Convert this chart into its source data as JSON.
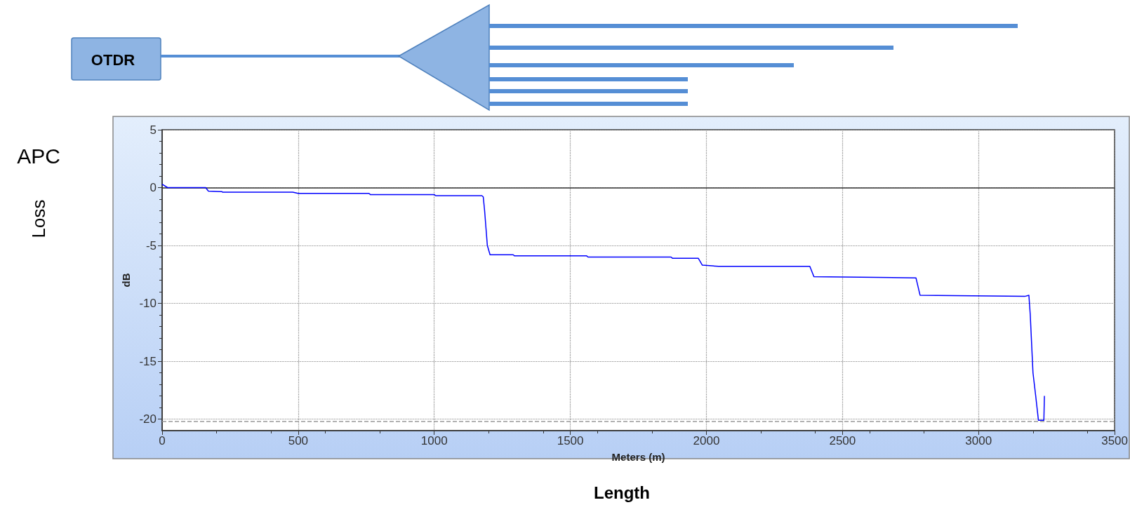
{
  "chart_data": {
    "type": "line",
    "xlabel": "Meters (m)",
    "ylabel": "dB",
    "annotations": [
      "APC",
      "Loss",
      "Length",
      "OTDR"
    ],
    "xlim": [
      0,
      3500
    ],
    "xticks": [
      0,
      500,
      1000,
      1500,
      2000,
      2500,
      3000,
      3500
    ],
    "ylim": [
      -21,
      5
    ],
    "yticks": [
      -20,
      -15,
      -10,
      -5,
      0,
      5
    ],
    "grid": true,
    "marker": "none",
    "line_style": "solid",
    "ref_lines": [
      {
        "axis": "y",
        "value": 0,
        "label": null,
        "color": "#333333",
        "line_style": "solid"
      },
      {
        "axis": "y",
        "value": -20.2,
        "label": null,
        "color": "#999999",
        "line_style": "dashed"
      }
    ],
    "series": [
      {
        "color": "#0000ff",
        "x": [
          0,
          20,
          160,
          170,
          220,
          222,
          480,
          500,
          760,
          765,
          1000,
          1005,
          1175,
          1180,
          1185,
          1190,
          1195,
          1205,
          1290,
          1295,
          1560,
          1565,
          1870,
          1875,
          1970,
          1985,
          2045,
          2380,
          2395,
          2770,
          2785,
          3170,
          3185,
          3190,
          3200,
          3210,
          3220,
          3240,
          3242
        ],
        "values": [
          0.3,
          0,
          0,
          -0.3,
          -0.35,
          -0.4,
          -0.4,
          -0.5,
          -0.5,
          -0.6,
          -0.6,
          -0.7,
          -0.7,
          -0.8,
          -2,
          -3.5,
          -5,
          -5.8,
          -5.8,
          -5.9,
          -5.9,
          -6,
          -6,
          -6.1,
          -6.1,
          -6.7,
          -6.8,
          -6.8,
          -7.7,
          -7.8,
          -9.3,
          -9.4,
          -9.3,
          -11,
          -16,
          -18,
          -20.1,
          -20.1,
          -18
        ]
      }
    ]
  }
}
